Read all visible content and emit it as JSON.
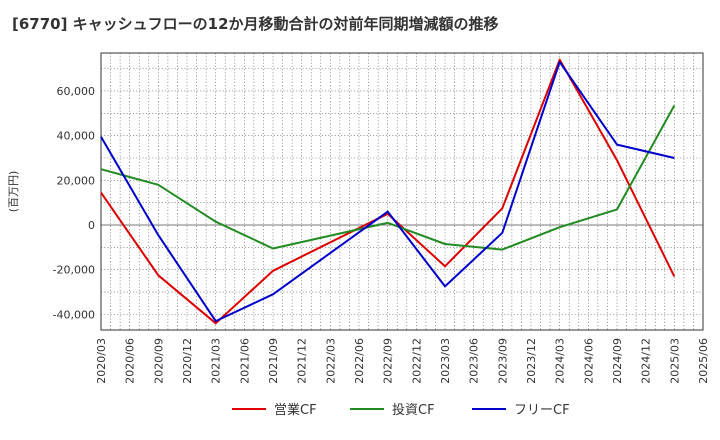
{
  "title": "[6770]  キャッシュフローの12か月移動合計の対前年同期増減額の推移",
  "chart_data": {
    "type": "line",
    "ylabel": "(百万円)",
    "xlabel": "",
    "ylim": [
      -47000,
      77000
    ],
    "yticks": [
      -40000,
      -20000,
      0,
      20000,
      40000,
      60000
    ],
    "ytick_labels": [
      "-40,000",
      "-20,000",
      "0",
      "20,000",
      "40,000",
      "60,000"
    ],
    "x_ticks": [
      "2020/03",
      "2020/06",
      "2020/09",
      "2020/12",
      "2021/03",
      "2021/06",
      "2021/09",
      "2021/12",
      "2022/03",
      "2022/06",
      "2022/09",
      "2022/12",
      "2023/03",
      "2023/06",
      "2023/09",
      "2023/12",
      "2024/03",
      "2024/06",
      "2024/09",
      "2024/12",
      "2025/03",
      "2025/06"
    ],
    "x": [
      "2020/03",
      "2020/09",
      "2021/03",
      "2021/09",
      "2022/09",
      "2023/03",
      "2023/09",
      "2024/03",
      "2024/09",
      "2025/03"
    ],
    "series": [
      {
        "name": "営業CF",
        "color": "#dd0000",
        "values": [
          14500,
          -22500,
          -44000,
          -20500,
          5000,
          -18500,
          7500,
          74000,
          29000,
          -23000
        ]
      },
      {
        "name": "投資CF",
        "color": "#228b22",
        "values": [
          25000,
          18000,
          1500,
          -10500,
          1000,
          -8500,
          -11000,
          -1000,
          7000,
          53500
        ]
      },
      {
        "name": "フリーCF",
        "color": "#0000cc",
        "values": [
          39500,
          -4500,
          -43000,
          -31000,
          6000,
          -27500,
          -3500,
          73000,
          36000,
          30000
        ]
      }
    ],
    "grid": true,
    "legend_position": "bottom-center"
  }
}
